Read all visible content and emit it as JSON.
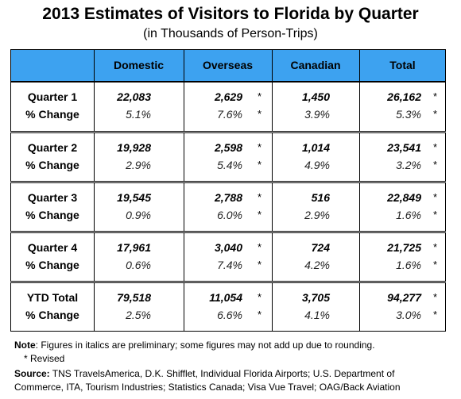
{
  "title": "2013 Estimates of Visitors to Florida by Quarter",
  "subtitle": "(in Thousands of Person-Trips)",
  "table": {
    "columns": [
      "Domestic",
      "Overseas",
      "Canadian",
      "Total"
    ],
    "groups": [
      {
        "label": "Quarter 1",
        "values": [
          {
            "text": "22,083"
          },
          {
            "text": "2,629",
            "mark": "*"
          },
          {
            "text": "1,450"
          },
          {
            "text": "26,162",
            "mark": "*"
          }
        ],
        "change_label": "% Change",
        "changes": [
          {
            "text": "5.1%"
          },
          {
            "text": "7.6%",
            "mark": "*"
          },
          {
            "text": "3.9%"
          },
          {
            "text": "5.3%",
            "mark": "*"
          }
        ]
      },
      {
        "label": "Quarter 2",
        "values": [
          {
            "text": "19,928"
          },
          {
            "text": "2,598",
            "mark": "*"
          },
          {
            "text": "1,014"
          },
          {
            "text": "23,541",
            "mark": "*"
          }
        ],
        "change_label": "% Change",
        "changes": [
          {
            "text": "2.9%"
          },
          {
            "text": "5.4%",
            "mark": "*"
          },
          {
            "text": "4.9%"
          },
          {
            "text": "3.2%",
            "mark": "*"
          }
        ]
      },
      {
        "label": "Quarter 3",
        "values": [
          {
            "text": "19,545"
          },
          {
            "text": "2,788",
            "mark": "*"
          },
          {
            "text": "516"
          },
          {
            "text": "22,849",
            "mark": "*"
          }
        ],
        "change_label": "% Change",
        "changes": [
          {
            "text": "0.9%"
          },
          {
            "text": "6.0%",
            "mark": "*"
          },
          {
            "text": "2.9%"
          },
          {
            "text": "1.6%",
            "mark": "*"
          }
        ]
      },
      {
        "label": "Quarter 4",
        "values": [
          {
            "text": "17,961"
          },
          {
            "text": "3,040",
            "mark": "*"
          },
          {
            "text": "724"
          },
          {
            "text": "21,725",
            "mark": "*"
          }
        ],
        "change_label": "% Change",
        "changes": [
          {
            "text": "0.6%"
          },
          {
            "text": "7.4%",
            "mark": "*"
          },
          {
            "text": "4.2%"
          },
          {
            "text": "1.6%",
            "mark": "*"
          }
        ]
      },
      {
        "label": "YTD Total",
        "values": [
          {
            "text": "79,518"
          },
          {
            "text": "11,054",
            "mark": "*"
          },
          {
            "text": "3,705"
          },
          {
            "text": "94,277",
            "mark": "*"
          }
        ],
        "change_label": "% Change",
        "changes": [
          {
            "text": "2.5%"
          },
          {
            "text": "6.6%",
            "mark": "*"
          },
          {
            "text": "4.1%"
          },
          {
            "text": "3.0%",
            "mark": "*"
          }
        ]
      }
    ]
  },
  "notes": {
    "note_label": "Note",
    "note_text": ": Figures in italics are preliminary; some figures may not add up due to rounding.",
    "revised": "* Revised",
    "source_label": "Source:",
    "source_text": " TNS TravelsAmerica, D.K. Shifflet, Individual Florida Airports; U.S. Department of Commerce,  ITA, Tourism Industries; Statistics Canada; Visa Vue Travel; OAG/Back Aviation"
  }
}
